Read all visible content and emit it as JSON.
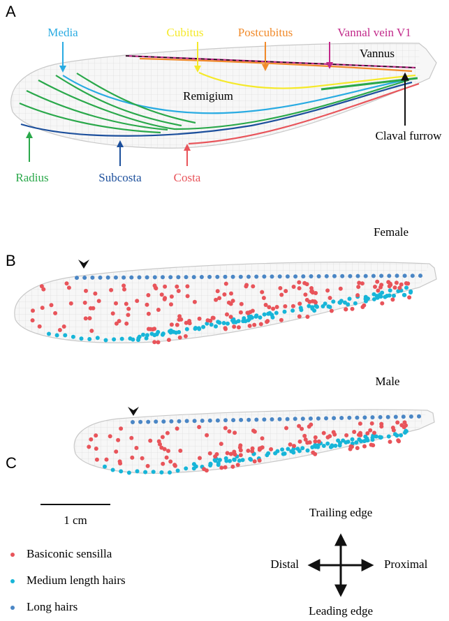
{
  "panels": {
    "a": {
      "label": "A",
      "veins": [
        {
          "label": "Media",
          "color": "#29abe2"
        },
        {
          "label": "Cubitus",
          "color": "#f5e92a"
        },
        {
          "label": "Postcubitus",
          "color": "#f18a2a"
        },
        {
          "label": "Vannal vein V1",
          "color": "#c2298a"
        },
        {
          "label": "Radius",
          "color": "#2aa84a"
        },
        {
          "label": "Subcosta",
          "color": "#1c4f9c"
        },
        {
          "label": "Costa",
          "color": "#e8545a"
        }
      ],
      "regions": [
        "Vannus",
        "Remigium"
      ],
      "furrow": "Claval furrow"
    },
    "b": {
      "label": "B",
      "sex": "Female"
    },
    "c": {
      "label": "C",
      "sex": "Male"
    }
  },
  "scale_bar": "1 cm",
  "legend": [
    {
      "label": "Basiconic sensilla",
      "color": "#e8545a"
    },
    {
      "label": "Medium length hairs",
      "color": "#17b5d8"
    },
    {
      "label": "Long hairs",
      "color": "#4a86c5"
    }
  ],
  "compass": {
    "up": "Trailing edge",
    "left": "Distal",
    "right": "Proximal",
    "down": "Leading edge"
  }
}
